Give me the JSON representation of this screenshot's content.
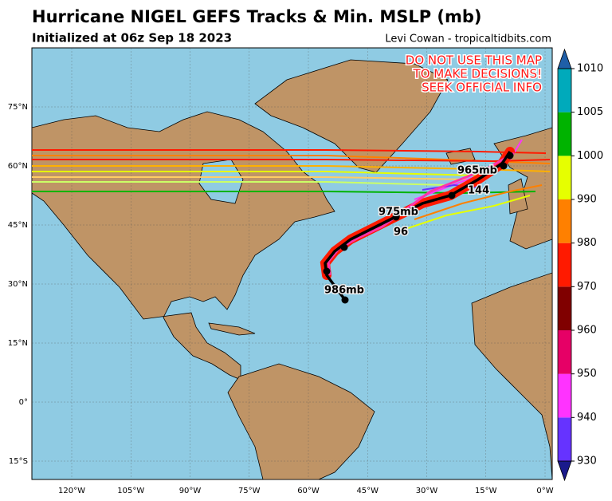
{
  "header": {
    "title": "Hurricane NIGEL GEFS Tracks & Min. MSLP (mb)",
    "subtitle": "Initialized at 06z Sep 18 2023",
    "credit": "Levi Cowan - tropicaltidbits.com"
  },
  "warning": [
    "DO NOT USE THIS MAP",
    "TO MAKE DECISIONS!",
    "SEEK OFFICIAL INFO"
  ],
  "lat_labels": [
    "75°N",
    "60°N",
    "45°N",
    "30°N",
    "15°N",
    "0°",
    "15°S"
  ],
  "lon_labels": [
    "120°W",
    "105°W",
    "90°W",
    "75°W",
    "60°W",
    "45°W",
    "30°W",
    "15°W",
    "0°W"
  ],
  "track_labels": [
    "986mb",
    "975mb",
    "96",
    "965mb",
    "144"
  ],
  "colorbar": {
    "ticks": [
      930,
      940,
      950,
      960,
      970,
      980,
      990,
      1000,
      1005,
      1010
    ],
    "colors": [
      "#6633ff",
      "#ff33ff",
      "#e60066",
      "#800000",
      "#ff1a00",
      "#ff8000",
      "#e6ff00",
      "#00b300",
      "#00aabb"
    ],
    "under_color": "#1a1a8c",
    "over_color": "#1f5fa8"
  }
}
